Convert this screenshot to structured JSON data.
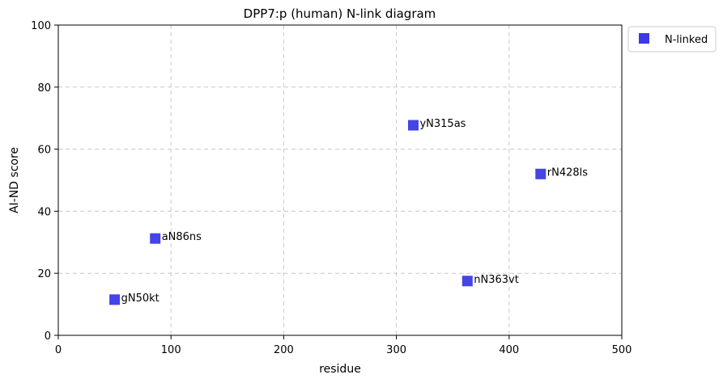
{
  "chart_data": {
    "type": "scatter",
    "title": "DPP7:p (human) N-link diagram",
    "xlabel": "residue",
    "ylabel": "AI-ND score",
    "xlim": [
      0,
      500
    ],
    "ylim": [
      0,
      100
    ],
    "xticks": [
      0,
      100,
      200,
      300,
      400,
      500
    ],
    "yticks": [
      0,
      20,
      40,
      60,
      80,
      100
    ],
    "grid": true,
    "legend_position": "outside-top-right",
    "series": [
      {
        "name": "N-linked",
        "color": "#3a3ae6",
        "marker": "square",
        "points": [
          {
            "x": 50,
            "y": 11.5,
            "label": "gN50kt"
          },
          {
            "x": 86,
            "y": 31.2,
            "label": "aN86ns"
          },
          {
            "x": 315,
            "y": 67.7,
            "label": "yN315as"
          },
          {
            "x": 363,
            "y": 17.5,
            "label": "nN363vt"
          },
          {
            "x": 428,
            "y": 52.0,
            "label": "rN428ls"
          }
        ]
      }
    ]
  }
}
